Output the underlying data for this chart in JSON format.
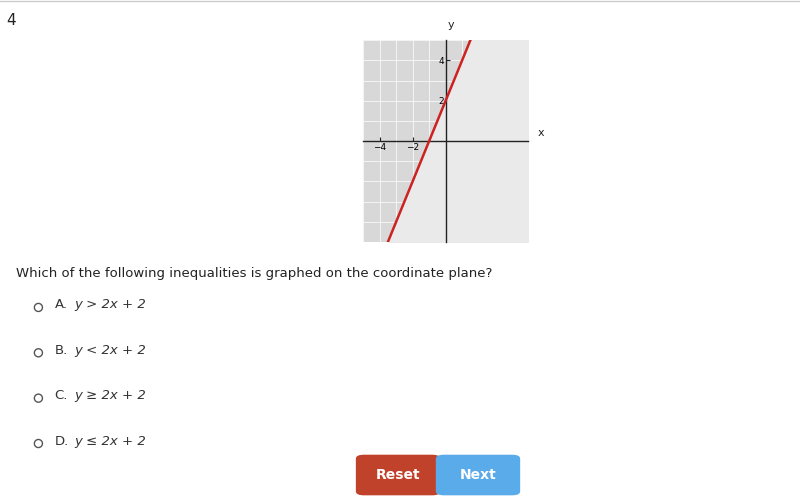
{
  "title_number": "4",
  "question_text": "Which of the following inequalities is graphed on the coordinate plane?",
  "choices": [
    {
      "label": "A.",
      "text": "y > 2x + 2"
    },
    {
      "label": "B.",
      "text": "y < 2x + 2"
    },
    {
      "label": "C.",
      "text": "y ≥ 2x + 2"
    },
    {
      "label": "D.",
      "text": "y ≤ 2x + 2"
    }
  ],
  "graph": {
    "xlim": [
      -5,
      5
    ],
    "ylim": [
      -5,
      5
    ],
    "line_color": "#cc2222",
    "line_width": 1.8,
    "slope": 2,
    "intercept": 2
  },
  "reset_button": {
    "text": "Reset",
    "color": "#c0422a",
    "text_color": "#ffffff"
  },
  "next_button": {
    "text": "Next",
    "color": "#5aabea",
    "text_color": "#ffffff"
  },
  "bg_color": "#ffffff",
  "graph_bg": "#d8d8d8",
  "shade_color": "#d8d8d8",
  "no_shade_color": "#eaeaea"
}
